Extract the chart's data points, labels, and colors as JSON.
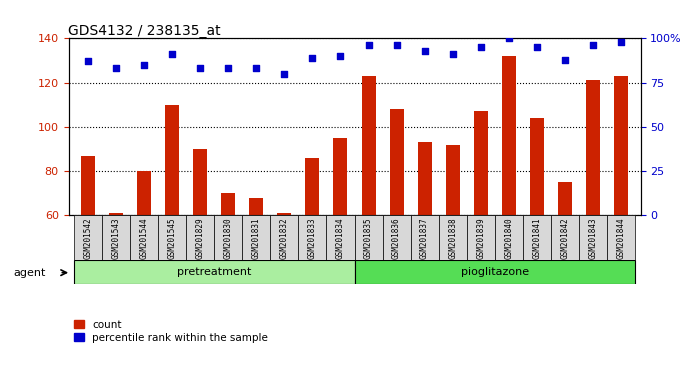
{
  "title": "GDS4132 / 238135_at",
  "samples": [
    "GSM201542",
    "GSM201543",
    "GSM201544",
    "GSM201545",
    "GSM201829",
    "GSM201830",
    "GSM201831",
    "GSM201832",
    "GSM201833",
    "GSM201834",
    "GSM201835",
    "GSM201836",
    "GSM201837",
    "GSM201838",
    "GSM201839",
    "GSM201840",
    "GSM201841",
    "GSM201842",
    "GSM201843",
    "GSM201844"
  ],
  "count_values": [
    87,
    61,
    80,
    110,
    90,
    70,
    68,
    61,
    86,
    95,
    123,
    108,
    93,
    92,
    107,
    132,
    104,
    75,
    121,
    123
  ],
  "percentile_values": [
    87,
    83,
    85,
    91,
    83,
    83,
    83,
    80,
    89,
    90,
    96,
    96,
    93,
    91,
    95,
    100,
    95,
    88,
    96,
    98
  ],
  "pretreatment_count": 10,
  "pioglitazone_count": 10,
  "pretreatment_label": "pretreatment",
  "pioglitazone_label": "pioglitazone",
  "agent_label": "agent",
  "count_label": "count",
  "percentile_label": "percentile rank within the sample",
  "ylim_left": [
    60,
    140
  ],
  "ylim_right": [
    0,
    100
  ],
  "yticks_left": [
    60,
    80,
    100,
    120,
    140
  ],
  "yticks_right": [
    0,
    25,
    50,
    75,
    100
  ],
  "yticklabels_right": [
    "0",
    "25",
    "50",
    "75",
    "100%"
  ],
  "bar_color": "#cc2200",
  "dot_color": "#0000cc",
  "bar_width": 0.5,
  "bg_color": "#d8d8d8",
  "pretreat_bg": "#aaeea0",
  "pioglitazone_bg": "#55dd55",
  "left_axis_color": "#cc2200",
  "right_axis_color": "#0000cc"
}
